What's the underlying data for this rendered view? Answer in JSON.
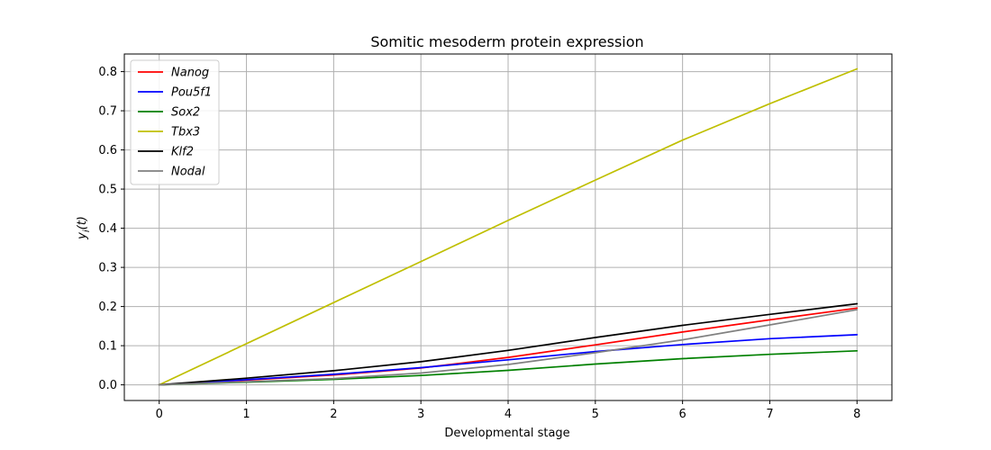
{
  "chart_data": {
    "type": "line",
    "title": "Somitic mesoderm protein expression",
    "xlabel": "Developmental stage",
    "ylabel": "y_i(t)",
    "xlim": [
      -0.4,
      8.4
    ],
    "ylim": [
      -0.04,
      0.845
    ],
    "xticks": [
      0,
      1,
      2,
      3,
      4,
      5,
      6,
      7,
      8
    ],
    "yticks": [
      0.0,
      0.1,
      0.2,
      0.3,
      0.4,
      0.5,
      0.6,
      0.7,
      0.8
    ],
    "xtick_labels": [
      "0",
      "1",
      "2",
      "3",
      "4",
      "5",
      "6",
      "7",
      "8"
    ],
    "ytick_labels": [
      "0.0",
      "0.1",
      "0.2",
      "0.3",
      "0.4",
      "0.5",
      "0.6",
      "0.7",
      "0.8"
    ],
    "grid": true,
    "legend_position": "top-left",
    "x": [
      0,
      1,
      2,
      3,
      4,
      5,
      6,
      7,
      8
    ],
    "series": [
      {
        "name": "Nanog",
        "color": "#ff0000",
        "values": [
          0.0,
          0.012,
          0.025,
          0.043,
          0.07,
          0.102,
          0.135,
          0.166,
          0.196
        ]
      },
      {
        "name": "Pou5f1",
        "color": "#0000ff",
        "values": [
          0.0,
          0.013,
          0.027,
          0.044,
          0.064,
          0.085,
          0.103,
          0.118,
          0.128
        ]
      },
      {
        "name": "Sox2",
        "color": "#008000",
        "values": [
          0.0,
          0.007,
          0.014,
          0.024,
          0.037,
          0.053,
          0.067,
          0.078,
          0.087
        ]
      },
      {
        "name": "Tbx3",
        "color": "#bfbf00",
        "values": [
          0.0,
          0.105,
          0.21,
          0.315,
          0.42,
          0.523,
          0.625,
          0.718,
          0.807
        ]
      },
      {
        "name": "Klf2",
        "color": "#000000",
        "values": [
          0.0,
          0.017,
          0.036,
          0.059,
          0.088,
          0.121,
          0.152,
          0.18,
          0.207
        ]
      },
      {
        "name": "Nodal",
        "color": "#808080",
        "values": [
          0.0,
          0.008,
          0.016,
          0.03,
          0.052,
          0.082,
          0.115,
          0.153,
          0.192
        ]
      }
    ]
  }
}
